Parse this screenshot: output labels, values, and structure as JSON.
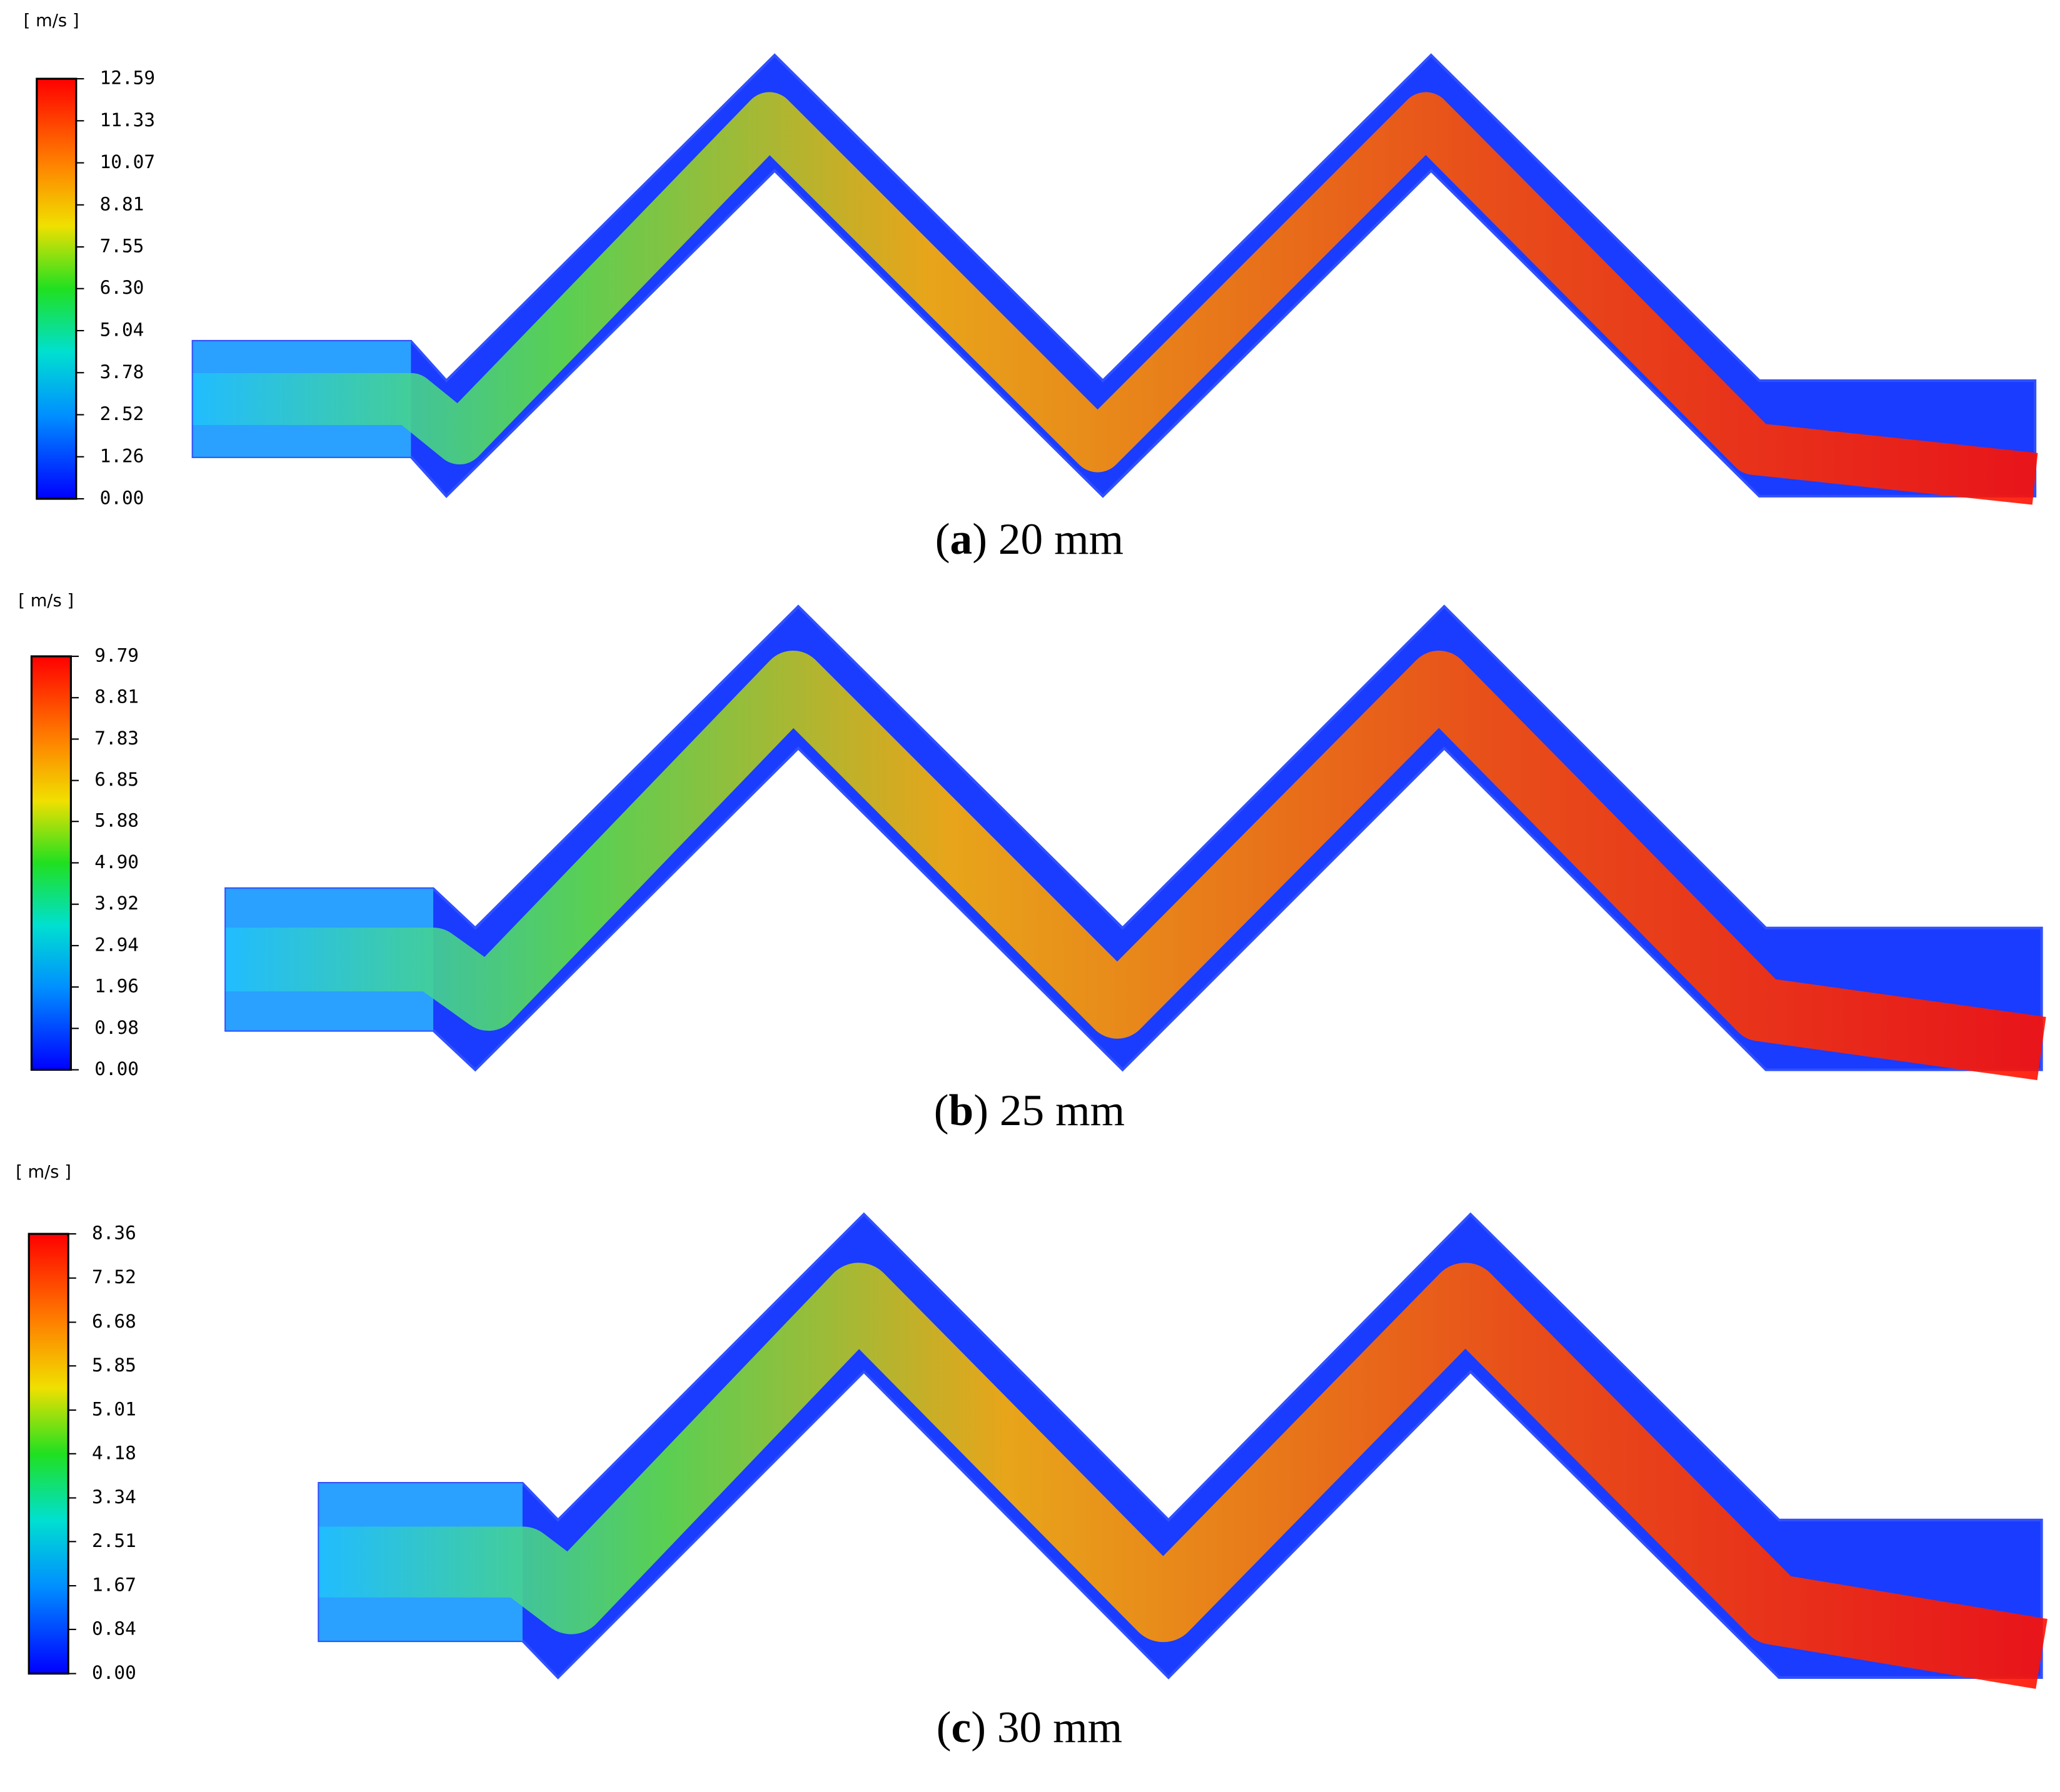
{
  "panels": [
    {
      "unit": "[ m/s ]",
      "ticks": [
        12.59,
        11.33,
        10.07,
        8.81,
        7.55,
        {
          "value": 6.3,
          "label": "6.30"
        },
        5.04,
        3.78,
        2.52,
        1.26,
        {
          "value": 0,
          "label": "0.00"
        }
      ],
      "caption": {
        "open": "(",
        "label": "a",
        "close": ") 20 mm"
      }
    },
    {
      "unit": "[ m/s ]",
      "ticks": [
        9.79,
        8.81,
        7.83,
        6.85,
        5.88,
        {
          "value": 4.9,
          "label": "4.90"
        },
        3.92,
        2.94,
        1.96,
        0.98,
        {
          "value": 0,
          "label": "0.00"
        }
      ],
      "caption": {
        "open": "(",
        "label": "b",
        "close": ") 25 mm"
      }
    },
    {
      "unit": "[ m/s ]",
      "ticks": [
        8.36,
        7.52,
        6.68,
        5.85,
        5.01,
        4.18,
        3.34,
        2.51,
        1.67,
        0.84,
        {
          "value": 0,
          "label": "0.00"
        }
      ],
      "caption": {
        "open": "(",
        "label": "c",
        "close": ") 30 mm"
      }
    }
  ]
}
